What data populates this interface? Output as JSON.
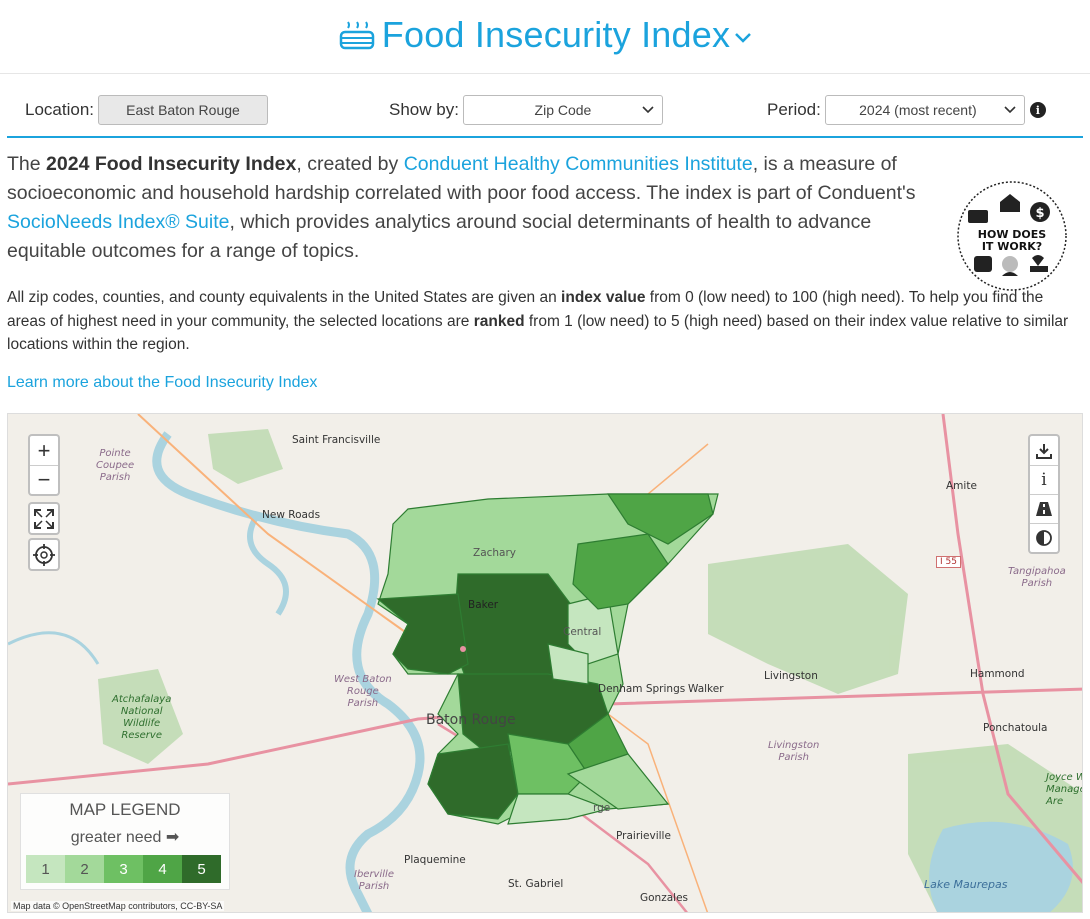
{
  "header": {
    "title": "Food Insecurity Index",
    "accent_color": "#1ba3dd"
  },
  "controls": {
    "location_label": "Location:",
    "location_value": "East Baton Rouge",
    "show_by_label": "Show by:",
    "show_by_value": "Zip Code",
    "period_label": "Period:",
    "period_value": "2024 (most recent)",
    "info_icon": "i"
  },
  "intro": {
    "p1_a": "The ",
    "p1_b": "2024 Food Insecurity Index",
    "p1_c": ", created by ",
    "p1_link1": "Conduent Healthy Communities Institute",
    "p1_d": ", is a measure of socioeconomic and household hardship correlated with poor food access. The index is part of Conduent's ",
    "p1_link2": "SocioNeeds Index® Suite",
    "p1_e": ", which provides analytics around social determinants of health to advance equitable outcomes for a range of topics.",
    "badge_line1": "HOW DOES",
    "badge_line2": "IT WORK?"
  },
  "details": {
    "p2_a": "All zip codes, counties, and county equivalents in the United States are given an ",
    "p2_b": "index value",
    "p2_c": " from 0 (low need) to 100 (high need). To help you find the areas of highest need in your community, the selected locations are ",
    "p2_d": "ranked",
    "p2_e": " from 1 (low need) to 5 (high need) based on their index value relative to similar locations within the region.",
    "learn_more": "Learn more about the Food Insecurity Index"
  },
  "map": {
    "zoom_in": "+",
    "zoom_out": "−",
    "labels": {
      "saint_francisville": "Saint Francisville",
      "pointe_coupee_1": "Pointe",
      "pointe_coupee_2": "Coupee",
      "pointe_coupee_3": "Parish",
      "new_roads": "New Roads",
      "zachary": "Zachary",
      "baker": "Baker",
      "central": "Central",
      "west_baton_rouge_1": "West Baton",
      "west_baton_rouge_2": "Rouge",
      "west_baton_rouge_3": "Parish",
      "atchafalaya_1": "Atchafalaya",
      "atchafalaya_2": "National",
      "atchafalaya_3": "Wildlife",
      "atchafalaya_4": "Reserve",
      "baton_rouge": "Baton Rouge",
      "denham_springs": "Denham Springs",
      "walker": "Walker",
      "livingston": "Livingston",
      "livingston_parish_1": "Livingston",
      "livingston_parish_2": "Parish",
      "amite": "Amite",
      "i55": "I 55",
      "tangipahoa_1": "Tangipahoa",
      "tangipahoa_2": "Parish",
      "hammond": "Hammond",
      "ponchatoula": "Ponchatoula",
      "joyce_1": "Joyce W",
      "joyce_2": "Manage",
      "joyce_3": "Are",
      "prairieville": "Prairieville",
      "plaquemine": "Plaquemine",
      "iberville_1": "Iberville",
      "iberville_2": "Parish",
      "st_gabriel": "St. Gabriel",
      "gonzales": "Gonzales",
      "lake_maurepas": "Lake Maurepas",
      "sorrento_partial": "rge"
    },
    "attribution": "Map data © OpenStreetMap contributors, CC-BY-SA",
    "tools": [
      "download-icon",
      "info-icon",
      "road-icon",
      "contrast-icon"
    ]
  },
  "legend": {
    "title": "MAP LEGEND",
    "subtitle": "greater need",
    "levels": [
      {
        "label": "1",
        "color": "#c5e6bf"
      },
      {
        "label": "2",
        "color": "#a3d99a"
      },
      {
        "label": "3",
        "color": "#6ec063"
      },
      {
        "label": "4",
        "color": "#4fa546"
      },
      {
        "label": "5",
        "color": "#2f6b2a"
      }
    ]
  }
}
